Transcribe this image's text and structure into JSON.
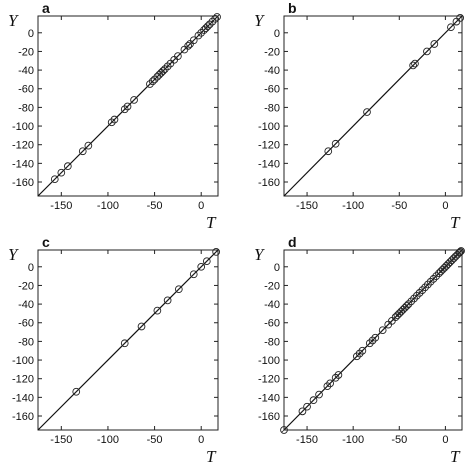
{
  "chart_data": [
    {
      "type": "scatter",
      "panel": "a",
      "ylabel": "Y",
      "xlabel": "T",
      "xlim": [
        -175,
        18
      ],
      "ylim": [
        -175,
        18
      ],
      "xticks": [
        -150,
        -100,
        -50,
        0
      ],
      "yticks": [
        0,
        -20,
        -40,
        -60,
        -80,
        -100,
        -120,
        -140,
        -160
      ],
      "line": "y = x",
      "points": [
        [
          -157,
          -157
        ],
        [
          -150,
          -150
        ],
        [
          -143,
          -143
        ],
        [
          -127,
          -127
        ],
        [
          -121,
          -121
        ],
        [
          -96,
          -96
        ],
        [
          -93,
          -93
        ],
        [
          -82,
          -82
        ],
        [
          -79,
          -79
        ],
        [
          -72,
          -72
        ],
        [
          -55,
          -55
        ],
        [
          -52,
          -52
        ],
        [
          -50,
          -50
        ],
        [
          -47,
          -47
        ],
        [
          -45,
          -45
        ],
        [
          -43,
          -43
        ],
        [
          -41,
          -41
        ],
        [
          -39,
          -39
        ],
        [
          -36,
          -36
        ],
        [
          -33,
          -33
        ],
        [
          -29,
          -29
        ],
        [
          -25,
          -25
        ],
        [
          -18,
          -18
        ],
        [
          -14,
          -14
        ],
        [
          -12,
          -12
        ],
        [
          -8,
          -8
        ],
        [
          -3,
          -3
        ],
        [
          0,
          0
        ],
        [
          3,
          3
        ],
        [
          5,
          5
        ],
        [
          7,
          7
        ],
        [
          9,
          9
        ],
        [
          12,
          12
        ],
        [
          15,
          15
        ],
        [
          17,
          17
        ]
      ]
    },
    {
      "type": "scatter",
      "panel": "b",
      "ylabel": "Y",
      "xlabel": "T",
      "xlim": [
        -175,
        18
      ],
      "ylim": [
        -175,
        18
      ],
      "xticks": [
        -150,
        -100,
        -50,
        0
      ],
      "yticks": [
        0,
        -20,
        -40,
        -60,
        -80,
        -100,
        -120,
        -140,
        -160
      ],
      "line": "y = x",
      "points": [
        [
          -127,
          -127
        ],
        [
          -119,
          -119
        ],
        [
          -85,
          -85
        ],
        [
          -35,
          -35
        ],
        [
          -33,
          -33
        ],
        [
          -20,
          -20
        ],
        [
          -12,
          -12
        ],
        [
          6,
          6
        ],
        [
          12,
          12
        ],
        [
          16,
          16
        ]
      ]
    },
    {
      "type": "scatter",
      "panel": "c",
      "ylabel": "Y",
      "xlabel": "T",
      "xlim": [
        -175,
        18
      ],
      "ylim": [
        -175,
        18
      ],
      "xticks": [
        -150,
        -100,
        -50,
        0
      ],
      "yticks": [
        0,
        -20,
        -40,
        -60,
        -80,
        -100,
        -120,
        -140,
        -160
      ],
      "line": "y = x",
      "points": [
        [
          -134,
          -134
        ],
        [
          -82,
          -82
        ],
        [
          -64,
          -64
        ],
        [
          -47,
          -47
        ],
        [
          -36,
          -36
        ],
        [
          -24,
          -24
        ],
        [
          -8,
          -8
        ],
        [
          0,
          0
        ],
        [
          6,
          6
        ],
        [
          16,
          16
        ]
      ]
    },
    {
      "type": "scatter",
      "panel": "d",
      "ylabel": "Y",
      "xlabel": "T",
      "xlim": [
        -175,
        18
      ],
      "ylim": [
        -175,
        18
      ],
      "xticks": [
        -150,
        -100,
        -50,
        0
      ],
      "yticks": [
        0,
        -20,
        -40,
        -60,
        -80,
        -100,
        -120,
        -140,
        -160
      ],
      "line": "y = x",
      "points": [
        [
          -175,
          -175
        ],
        [
          -155,
          -155
        ],
        [
          -150,
          -150
        ],
        [
          -143,
          -143
        ],
        [
          -137,
          -137
        ],
        [
          -128,
          -128
        ],
        [
          -125,
          -125
        ],
        [
          -119,
          -119
        ],
        [
          -116,
          -116
        ],
        [
          -96,
          -96
        ],
        [
          -93,
          -93
        ],
        [
          -90,
          -90
        ],
        [
          -82,
          -82
        ],
        [
          -79,
          -79
        ],
        [
          -76,
          -76
        ],
        [
          -68,
          -68
        ],
        [
          -62,
          -62
        ],
        [
          -58,
          -58
        ],
        [
          -54,
          -54
        ],
        [
          -52,
          -52
        ],
        [
          -50,
          -50
        ],
        [
          -48,
          -48
        ],
        [
          -46,
          -46
        ],
        [
          -44,
          -44
        ],
        [
          -42,
          -42
        ],
        [
          -40,
          -40
        ],
        [
          -37,
          -37
        ],
        [
          -34,
          -34
        ],
        [
          -31,
          -31
        ],
        [
          -28,
          -28
        ],
        [
          -25,
          -25
        ],
        [
          -22,
          -22
        ],
        [
          -19,
          -19
        ],
        [
          -16,
          -16
        ],
        [
          -13,
          -13
        ],
        [
          -10,
          -10
        ],
        [
          -7,
          -7
        ],
        [
          -5,
          -5
        ],
        [
          -3,
          -3
        ],
        [
          -1,
          -1
        ],
        [
          1,
          1
        ],
        [
          3,
          3
        ],
        [
          5,
          5
        ],
        [
          7,
          7
        ],
        [
          9,
          9
        ],
        [
          11,
          11
        ],
        [
          13,
          13
        ],
        [
          15,
          15
        ],
        [
          16,
          16
        ],
        [
          17,
          17
        ]
      ]
    }
  ]
}
